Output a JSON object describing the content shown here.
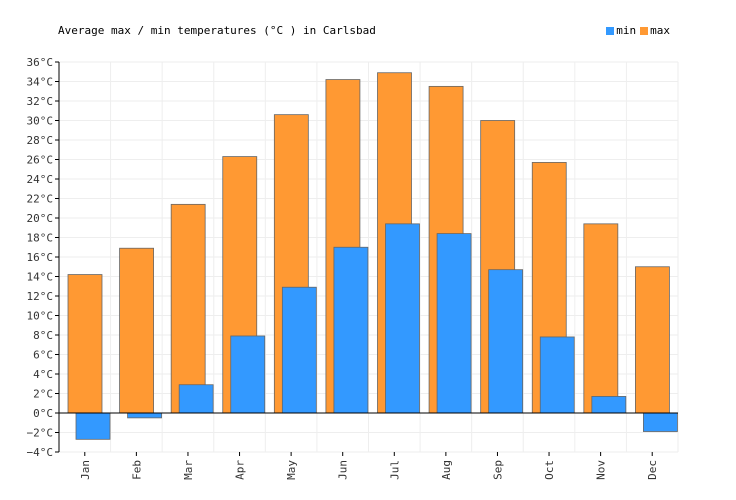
{
  "chart_data": {
    "type": "bar",
    "title": "Average max / min temperatures (°C ) in Carlsbad",
    "categories": [
      "Jan",
      "Feb",
      "Mar",
      "Apr",
      "May",
      "Jun",
      "Jul",
      "Aug",
      "Sep",
      "Oct",
      "Nov",
      "Dec"
    ],
    "series": [
      {
        "name": "min",
        "color": "#3399ff",
        "values": [
          -2.7,
          -0.5,
          2.9,
          7.9,
          12.9,
          17.0,
          19.4,
          18.4,
          14.7,
          7.8,
          1.7,
          -1.9
        ]
      },
      {
        "name": "max",
        "color": "#ff9933",
        "values": [
          14.2,
          16.9,
          21.4,
          26.3,
          30.6,
          34.2,
          34.9,
          33.5,
          30.0,
          25.7,
          19.4,
          15.0
        ]
      }
    ],
    "ylim": [
      -4,
      36
    ],
    "ytick_step": 2,
    "ytick_labels": [
      "−4°C",
      "−2°C",
      "0°C",
      "2°C",
      "4°C",
      "6°C",
      "8°C",
      "10°C",
      "12°C",
      "14°C",
      "16°C",
      "18°C",
      "20°C",
      "22°C",
      "24°C",
      "26°C",
      "28°C",
      "30°C",
      "32°C",
      "34°C",
      "36°C"
    ],
    "grid": true,
    "legend_position": "top-right"
  }
}
